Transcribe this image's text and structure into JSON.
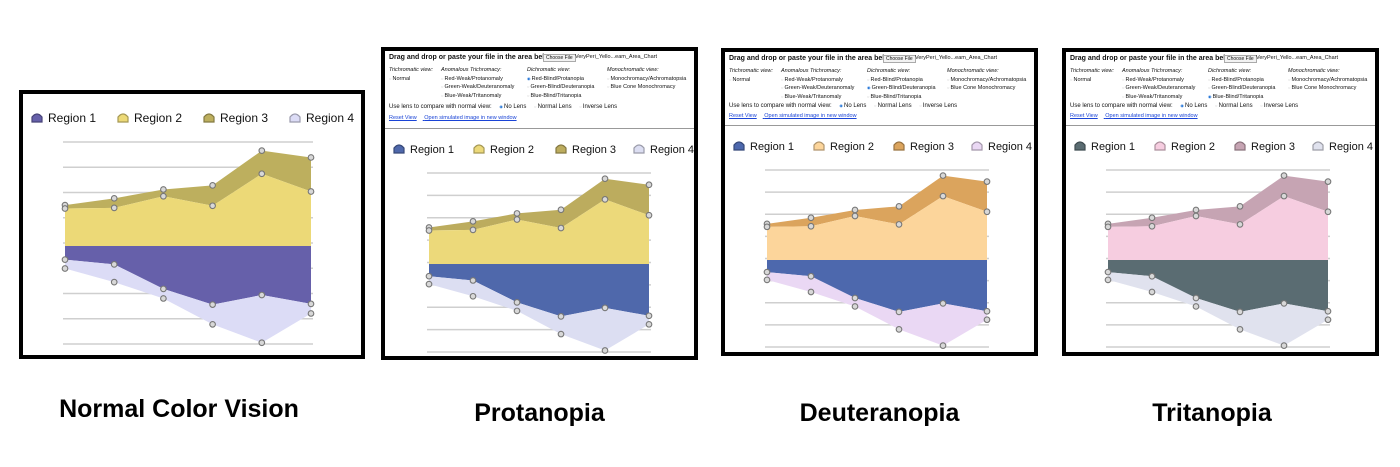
{
  "captions": [
    "Normal Color Vision",
    "Protanopia",
    "Deuteranopia",
    "Tritanopia"
  ],
  "simulator": {
    "drop_text": "Drag and drop or paste your file in the area below or:",
    "choose_file": "Choose File",
    "file_name": "VeryPeri_Yello...eam_Area_Chart",
    "trichromatic_view": "Trichromatic view:",
    "normal": "Normal",
    "anomalous_trichromacy": "Anomalous Trichromacy:",
    "red_weak": "Red-Weak/Protanomaly",
    "green_weak": "Green-Weak/Deuteranomaly",
    "blue_weak": "Blue-Weak/Tritanomaly",
    "dichromatic_view": "Dichromatic view:",
    "red_blind": "Red-Blind/Protanopia",
    "green_blind": "Green-Blind/Deuteranopia",
    "blue_blind": "Blue-Blind/Tritanopia",
    "monochromatic_view": "Monochromatic view:",
    "mono_achroma": "Monochromacy/Achromatopsia",
    "blue_cone": "Blue Cone Monochromacy",
    "use_lens": "Use lens to compare with normal view:",
    "no_lens": "No Lens",
    "normal_lens": "Normal Lens",
    "inverse_lens": "Inverse Lens",
    "reset_view": "Reset View",
    "open_new": "Open simulated image in new window"
  },
  "chart_data": {
    "type": "area",
    "stacking": "streamgraph (regions 1-2 above baseline, regions 3-4 below)",
    "series": [
      {
        "name": "Region 1"
      },
      {
        "name": "Region 2"
      },
      {
        "name": "Region 3"
      },
      {
        "name": "Region 4"
      }
    ],
    "x": [
      0,
      1,
      2,
      3,
      4,
      5
    ],
    "upper_top": [
      0.6,
      0.7,
      0.83,
      0.89,
      1.4,
      1.3
    ],
    "upper_mid": [
      0.55,
      0.56,
      0.73,
      0.59,
      1.06,
      0.8
    ],
    "lower_mid": [
      -0.2,
      -0.27,
      -0.63,
      -0.86,
      -0.72,
      -0.85
    ],
    "lower_bottom": [
      -0.33,
      -0.53,
      -0.77,
      -1.15,
      -1.42,
      -0.99
    ],
    "ylim": [
      -1.7,
      1.5
    ],
    "legend_position": "top",
    "grid": "horizontal"
  },
  "panels": [
    {
      "simulation": "normal",
      "colors": {
        "region1": "#6660aa",
        "region2": "#ecd977",
        "region3": "#bdaf5e",
        "region4": "#dcdcf6"
      }
    },
    {
      "simulation": "protanopia",
      "colors": {
        "region1": "#4f68ab",
        "region2": "#ecd97a",
        "region3": "#bcac5e",
        "region4": "#dcdef2"
      }
    },
    {
      "simulation": "deuteranopia",
      "colors": {
        "region1": "#4d68ad",
        "region2": "#fcd59b",
        "region3": "#dba45d",
        "region4": "#ead8f4"
      }
    },
    {
      "simulation": "tritanopia",
      "colors": {
        "region1": "#5a6c72",
        "region2": "#f6cde0",
        "region3": "#c6a4b3",
        "region4": "#e0e2ee"
      }
    }
  ]
}
